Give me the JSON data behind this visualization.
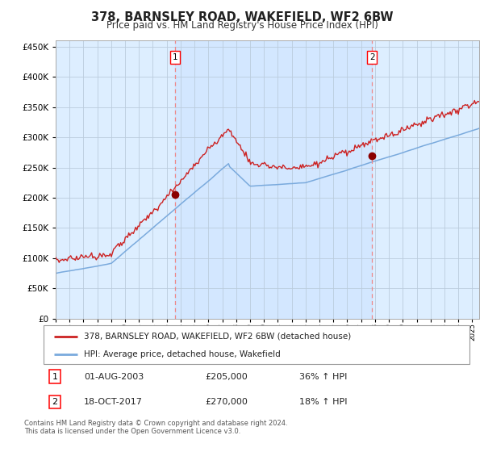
{
  "title": "378, BARNSLEY ROAD, WAKEFIELD, WF2 6BW",
  "subtitle": "Price paid vs. HM Land Registry's House Price Index (HPI)",
  "legend_line1": "378, BARNSLEY ROAD, WAKEFIELD, WF2 6BW (detached house)",
  "legend_line2": "HPI: Average price, detached house, Wakefield",
  "annotation1_date": "01-AUG-2003",
  "annotation1_price": "£205,000",
  "annotation1_hpi": "36% ↑ HPI",
  "annotation2_date": "18-OCT-2017",
  "annotation2_price": "£270,000",
  "annotation2_hpi": "18% ↑ HPI",
  "footer": "Contains HM Land Registry data © Crown copyright and database right 2024.\nThis data is licensed under the Open Government Licence v3.0.",
  "hpi_color": "#7aaadd",
  "property_color": "#cc2222",
  "point_color": "#8b0000",
  "vline_color": "#ee8888",
  "bg_color": "#ddeeff",
  "grid_color": "#bbccdd",
  "fig_bg": "#ffffff",
  "ylim": [
    0,
    460000
  ],
  "yticks": [
    0,
    50000,
    100000,
    150000,
    200000,
    250000,
    300000,
    350000,
    400000,
    450000
  ],
  "sale1_x": 2003.58,
  "sale1_y": 205000,
  "sale2_x": 2017.79,
  "sale2_y": 270000,
  "xmin": 1995,
  "xmax": 2025.5
}
